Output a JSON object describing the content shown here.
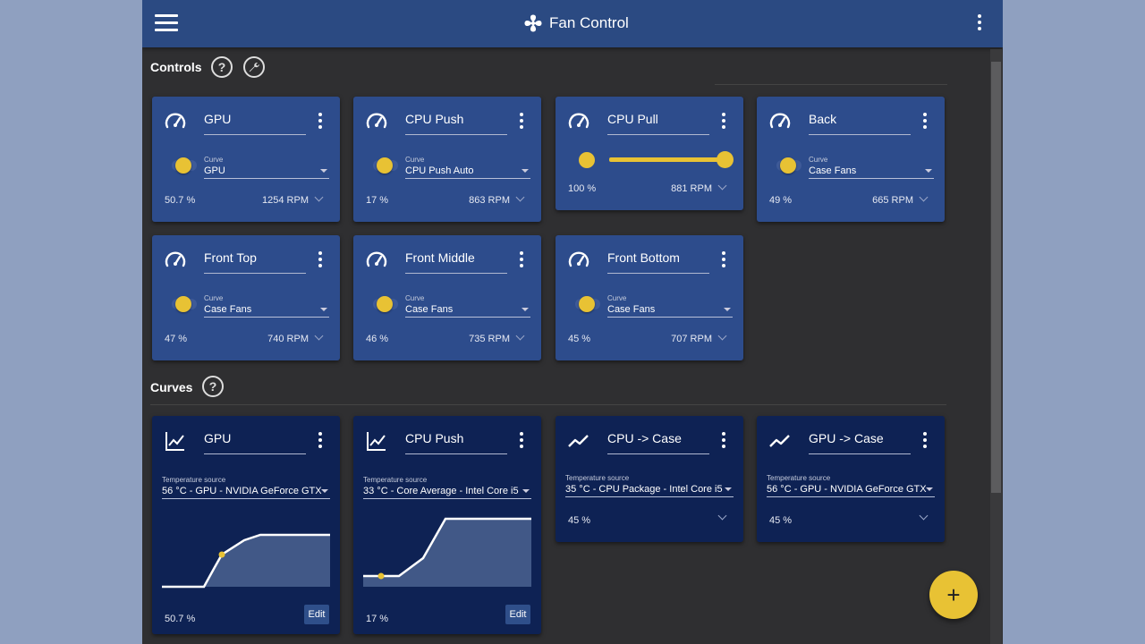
{
  "app": {
    "title": "Fan Control",
    "fan_icon": "fan-icon",
    "menu_icon": "hamburger-menu-icon",
    "more_icon": "more-vertical-icon"
  },
  "colors": {
    "header": "#2b4a82",
    "background": "#2f2f31",
    "control_card": "#2d4c8c",
    "curve_card": "#0e2254",
    "accent": "#e8c234"
  },
  "sections": {
    "controls": {
      "title": "Controls",
      "help_icon": "help-icon",
      "settings_icon": "wrench-icon"
    },
    "curves": {
      "title": "Curves",
      "help_icon": "help-icon"
    }
  },
  "controls": [
    {
      "name": "GPU",
      "mode": "curve",
      "curve_label": "Curve",
      "curve": "GPU",
      "percent": "50.7 %",
      "rpm": "1254 RPM"
    },
    {
      "name": "CPU Push",
      "mode": "curve",
      "curve_label": "Curve",
      "curve": "CPU Push Auto",
      "percent": "17 %",
      "rpm": "863 RPM"
    },
    {
      "name": "CPU Pull",
      "mode": "manual",
      "slider_value": 1.0,
      "percent": "100 %",
      "rpm": "881 RPM"
    },
    {
      "name": "Back",
      "mode": "curve",
      "curve_label": "Curve",
      "curve": "Case Fans",
      "percent": "49 %",
      "rpm": "665 RPM"
    },
    {
      "name": "Front Top",
      "mode": "curve",
      "curve_label": "Curve",
      "curve": "Case Fans",
      "percent": "47 %",
      "rpm": "740 RPM"
    },
    {
      "name": "Front Middle",
      "mode": "curve",
      "curve_label": "Curve",
      "curve": "Case Fans",
      "percent": "46 %",
      "rpm": "735 RPM"
    },
    {
      "name": "Front Bottom",
      "mode": "curve",
      "curve_label": "Curve",
      "curve": "Case Fans",
      "percent": "45 %",
      "rpm": "707 RPM"
    }
  ],
  "curves": [
    {
      "name": "GPU",
      "type": "graph",
      "source_label": "Temperature source",
      "source": "56 °C - GPU - NVIDIA GeForce GTX",
      "percent": "50.7 %",
      "edit_label": "Edit"
    },
    {
      "name": "CPU Push",
      "type": "graph",
      "source_label": "Temperature source",
      "source": "33 °C - Core Average - Intel Core i5",
      "percent": "17 %",
      "edit_label": "Edit"
    },
    {
      "name": "CPU -> Case",
      "type": "mix",
      "source_label": "Temperature source",
      "source": "35 °C - CPU Package - Intel Core i5",
      "percent": "45 %"
    },
    {
      "name": "GPU -> Case",
      "type": "mix",
      "source_label": "Temperature source",
      "source": "56 °C - GPU - NVIDIA GeForce GTX",
      "percent": "45 %"
    }
  ],
  "fab": {
    "label": "+",
    "icon": "plus-icon"
  }
}
